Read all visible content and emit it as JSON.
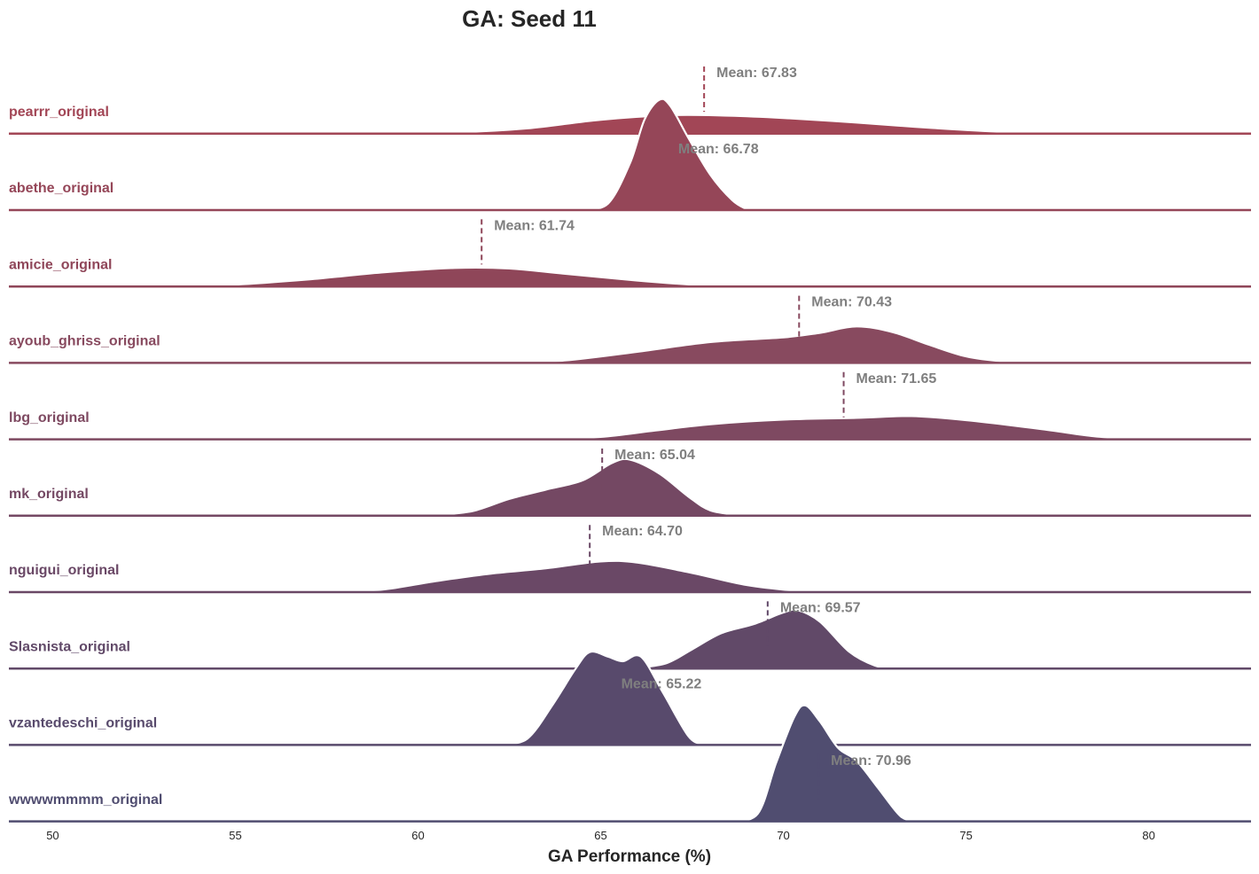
{
  "chart_data": {
    "type": "ridgeline",
    "title": "GA: Seed 11",
    "xlabel": "GA Performance (%)",
    "xlim": [
      48.8,
      82.8
    ],
    "xticks": [
      50,
      55,
      60,
      65,
      70,
      75,
      80
    ],
    "mean_prefix": "Mean: ",
    "series": [
      {
        "name": "pearrr_original",
        "mean": 67.83,
        "mean_label": "Mean: 67.83",
        "color": "#a24656",
        "density": [
          [
            58.5,
            0
          ],
          [
            61,
            0.005
          ],
          [
            63,
            0.04
          ],
          [
            65,
            0.115
          ],
          [
            67,
            0.155
          ],
          [
            68.5,
            0.15
          ],
          [
            70,
            0.13
          ],
          [
            72,
            0.09
          ],
          [
            74,
            0.045
          ],
          [
            76,
            0.01
          ],
          [
            78,
            0
          ]
        ]
      },
      {
        "name": "abethe_original",
        "mean": 66.78,
        "mean_label": "Mean: 66.78",
        "color": "#954658",
        "density": [
          [
            64.5,
            0
          ],
          [
            65.2,
            0.05
          ],
          [
            65.8,
            0.4
          ],
          [
            66.2,
            0.78
          ],
          [
            66.6,
            0.95
          ],
          [
            66.9,
            0.9
          ],
          [
            67.4,
            0.62
          ],
          [
            68,
            0.3
          ],
          [
            68.6,
            0.08
          ],
          [
            69,
            0
          ]
        ]
      },
      {
        "name": "amicie_original",
        "mean": 61.74,
        "mean_label": "Mean: 61.74",
        "color": "#8f4659",
        "density": [
          [
            53.5,
            0
          ],
          [
            55,
            0.01
          ],
          [
            57,
            0.055
          ],
          [
            59,
            0.115
          ],
          [
            61,
            0.155
          ],
          [
            62.5,
            0.15
          ],
          [
            64,
            0.105
          ],
          [
            66,
            0.045
          ],
          [
            67.5,
            0.01
          ],
          [
            68.5,
            0
          ]
        ]
      },
      {
        "name": "ayoub_ghriss_original",
        "mean": 70.43,
        "mean_label": "Mean: 70.43",
        "color": "#884a5f",
        "density": [
          [
            62.5,
            0
          ],
          [
            64,
            0.015
          ],
          [
            66,
            0.09
          ],
          [
            68,
            0.175
          ],
          [
            70,
            0.215
          ],
          [
            71,
            0.255
          ],
          [
            72,
            0.31
          ],
          [
            73,
            0.26
          ],
          [
            74,
            0.15
          ],
          [
            75,
            0.05
          ],
          [
            76,
            0.008
          ],
          [
            77,
            0
          ]
        ]
      },
      {
        "name": "lbg_original",
        "mean": 71.65,
        "mean_label": "Mean: 71.65",
        "color": "#7e4961",
        "density": [
          [
            63.5,
            0
          ],
          [
            65,
            0.015
          ],
          [
            66.5,
            0.07
          ],
          [
            68,
            0.125
          ],
          [
            70,
            0.165
          ],
          [
            72,
            0.18
          ],
          [
            73.5,
            0.195
          ],
          [
            75,
            0.16
          ],
          [
            77,
            0.085
          ],
          [
            78.5,
            0.02
          ],
          [
            79.5,
            0
          ]
        ]
      },
      {
        "name": "mk_original",
        "mean": 65.04,
        "mean_label": "Mean: 65.04",
        "color": "#744863",
        "density": [
          [
            60.5,
            0
          ],
          [
            61.5,
            0.035
          ],
          [
            62.5,
            0.14
          ],
          [
            63.5,
            0.22
          ],
          [
            64.5,
            0.3
          ],
          [
            65.3,
            0.45
          ],
          [
            65.8,
            0.48
          ],
          [
            66.6,
            0.36
          ],
          [
            67.4,
            0.16
          ],
          [
            68,
            0.04
          ],
          [
            68.8,
            0
          ]
        ]
      },
      {
        "name": "nguigui_original",
        "mean": 64.7,
        "mean_label": "Mean: 64.70",
        "color": "#6a4866",
        "density": [
          [
            57.5,
            0
          ],
          [
            59,
            0.015
          ],
          [
            60.5,
            0.09
          ],
          [
            62,
            0.155
          ],
          [
            63.5,
            0.2
          ],
          [
            65,
            0.26
          ],
          [
            66,
            0.25
          ],
          [
            67.5,
            0.16
          ],
          [
            69,
            0.055
          ],
          [
            70.5,
            0
          ],
          [
            71,
            0
          ]
        ]
      },
      {
        "name": "Slasnista_original",
        "mean": 69.57,
        "mean_label": "Mean: 69.57",
        "color": "#614968",
        "density": [
          [
            66,
            0
          ],
          [
            66.8,
            0.04
          ],
          [
            67.5,
            0.16
          ],
          [
            68.3,
            0.3
          ],
          [
            69.2,
            0.38
          ],
          [
            70,
            0.48
          ],
          [
            70.4,
            0.5
          ],
          [
            71,
            0.4
          ],
          [
            71.8,
            0.14
          ],
          [
            72.5,
            0.02
          ],
          [
            73,
            0
          ]
        ]
      },
      {
        "name": "vzantedeschi_original",
        "mean": 65.22,
        "mean_label": "Mean: 65.22",
        "color": "#584a6c",
        "density": [
          [
            62.3,
            0
          ],
          [
            63,
            0.05
          ],
          [
            63.7,
            0.35
          ],
          [
            64.3,
            0.65
          ],
          [
            64.7,
            0.8
          ],
          [
            65.2,
            0.76
          ],
          [
            65.6,
            0.72
          ],
          [
            66.1,
            0.76
          ],
          [
            66.7,
            0.45
          ],
          [
            67.4,
            0.07
          ],
          [
            67.8,
            0
          ]
        ]
      },
      {
        "name": "wwwwmmmm_original",
        "mean": 70.96,
        "mean_label": "Mean: 70.96",
        "color": "#504d70",
        "density": [
          [
            68.6,
            0
          ],
          [
            69.3,
            0.06
          ],
          [
            69.8,
            0.5
          ],
          [
            70.3,
            0.9
          ],
          [
            70.6,
            1.0
          ],
          [
            71,
            0.86
          ],
          [
            71.5,
            0.63
          ],
          [
            72,
            0.52
          ],
          [
            72.6,
            0.28
          ],
          [
            73.2,
            0.04
          ],
          [
            73.6,
            0
          ]
        ]
      }
    ]
  }
}
